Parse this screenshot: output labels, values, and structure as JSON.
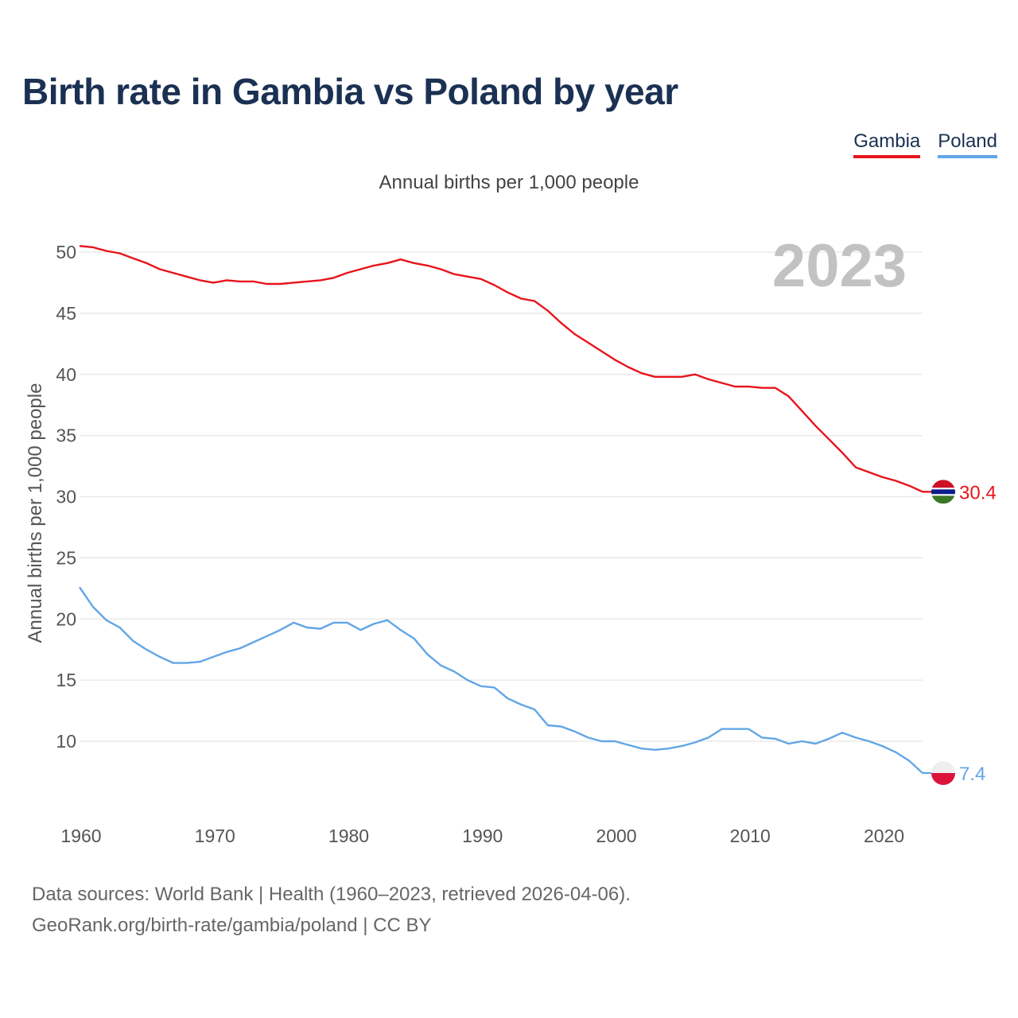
{
  "title": "Birth rate in Gambia vs Poland by year",
  "legend": [
    {
      "label": "Gambia",
      "color": "#e8141b"
    },
    {
      "label": "Poland",
      "color": "#62a6e6"
    }
  ],
  "subtitle": "Annual births per 1,000 people",
  "source": {
    "line1": "Data sources: World Bank | Health (1960–2023, retrieved 2026-04-06).",
    "line2": "GeoRank.org/birth-rate/gambia/poland | CC BY"
  },
  "chart_data": {
    "type": "line",
    "title": "Birth rate in Gambia vs Poland by year",
    "xlabel": "",
    "ylabel": "Annual births per 1,000 people",
    "year_label": "2023",
    "xlim": [
      1960,
      2023
    ],
    "ylim": [
      5,
      52
    ],
    "yticks": [
      10,
      15,
      20,
      25,
      30,
      35,
      40,
      45,
      50
    ],
    "xticks": [
      1960,
      1970,
      1980,
      1990,
      2000,
      2010,
      2020
    ],
    "grid": true,
    "legend_position": "top-right",
    "x": [
      1960,
      1961,
      1962,
      1963,
      1964,
      1965,
      1966,
      1967,
      1968,
      1969,
      1970,
      1971,
      1972,
      1973,
      1974,
      1975,
      1976,
      1977,
      1978,
      1979,
      1980,
      1981,
      1982,
      1983,
      1984,
      1985,
      1986,
      1987,
      1988,
      1989,
      1990,
      1991,
      1992,
      1993,
      1994,
      1995,
      1996,
      1997,
      1998,
      1999,
      2000,
      2001,
      2002,
      2003,
      2004,
      2005,
      2006,
      2007,
      2008,
      2009,
      2010,
      2011,
      2012,
      2013,
      2014,
      2015,
      2016,
      2017,
      2018,
      2019,
      2020,
      2021,
      2022,
      2023
    ],
    "series": [
      {
        "name": "Gambia",
        "color": "#e8141b",
        "end_label": "30.4",
        "values": [
          50.5,
          50.4,
          50.1,
          49.9,
          49.5,
          49.1,
          48.6,
          48.3,
          48.0,
          47.7,
          47.5,
          47.7,
          47.6,
          47.6,
          47.4,
          47.4,
          47.5,
          47.6,
          47.7,
          47.9,
          48.3,
          48.6,
          48.9,
          49.1,
          49.4,
          49.1,
          48.9,
          48.6,
          48.2,
          48.0,
          47.8,
          47.3,
          46.7,
          46.2,
          46.0,
          45.2,
          44.2,
          43.3,
          42.6,
          41.9,
          41.2,
          40.6,
          40.1,
          39.8,
          39.8,
          39.8,
          40.0,
          39.6,
          39.3,
          39.0,
          39.0,
          38.9,
          38.9,
          38.2,
          37.0,
          35.8,
          34.7,
          33.6,
          32.4,
          32.0,
          31.6,
          31.3,
          30.9,
          30.4
        ]
      },
      {
        "name": "Poland",
        "color": "#62a6e6",
        "end_label": "7.4",
        "values": [
          22.6,
          21.0,
          19.9,
          19.3,
          18.2,
          17.5,
          16.9,
          16.4,
          16.4,
          16.5,
          16.9,
          17.3,
          17.6,
          18.1,
          18.6,
          19.1,
          19.7,
          19.3,
          19.2,
          19.7,
          19.7,
          19.1,
          19.6,
          19.9,
          19.1,
          18.4,
          17.1,
          16.2,
          15.7,
          15.0,
          14.5,
          14.4,
          13.5,
          13.0,
          12.6,
          11.3,
          11.2,
          10.8,
          10.3,
          10.0,
          10.0,
          9.7,
          9.4,
          9.3,
          9.4,
          9.6,
          9.9,
          10.3,
          11.0,
          11.0,
          11.0,
          10.3,
          10.2,
          9.8,
          10.0,
          9.8,
          10.2,
          10.7,
          10.3,
          10.0,
          9.6,
          9.1,
          8.4,
          7.4
        ]
      }
    ]
  }
}
